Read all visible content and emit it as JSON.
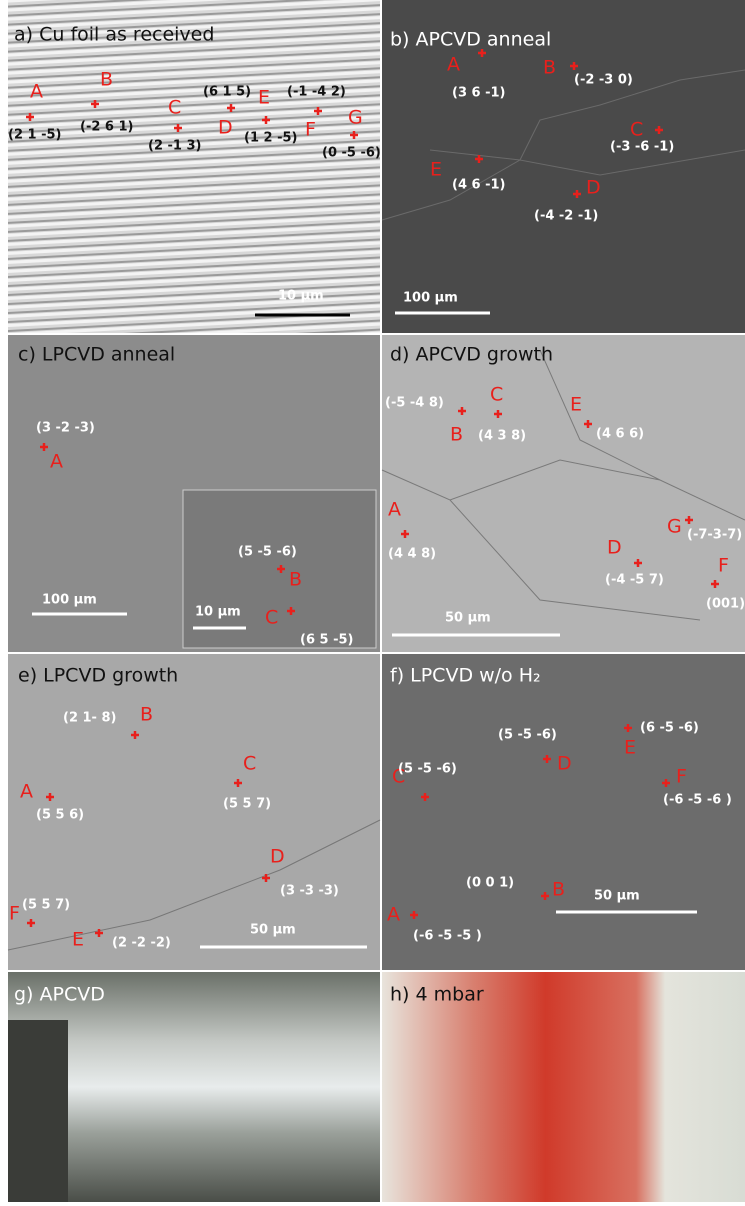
{
  "panels": [
    {
      "title": "a) Cu foil as received",
      "scale_bars": [
        "10 μm"
      ],
      "markers": [
        {
          "label": "A",
          "index": "(2 1 -5)"
        },
        {
          "label": "B",
          "index": "(-2 6 1)"
        },
        {
          "label": "C",
          "index": "(2 -1 3)"
        },
        {
          "label": "D",
          "index": "(6 1 5)"
        },
        {
          "label": "E",
          "index": "(1 2 -5)"
        },
        {
          "label": "F",
          "index": "(-1 -4 2)"
        },
        {
          "label": "G",
          "index": "(0 -5 -6)"
        }
      ]
    },
    {
      "title": "b) APCVD anneal",
      "scale_bars": [
        "100 μm"
      ],
      "markers": [
        {
          "label": "A",
          "index": "(3 6 -1)"
        },
        {
          "label": "B",
          "index": "(-2 -3 0)"
        },
        {
          "label": "C",
          "index": "(-3 -6 -1)"
        },
        {
          "label": "E",
          "index": "(4 6 -1)"
        },
        {
          "label": "D",
          "index": "(-4 -2 -1)"
        }
      ]
    },
    {
      "title": "c) LPCVD anneal",
      "scale_bars": [
        "100 μm",
        "10 μm"
      ],
      "markers": [
        {
          "label": "A",
          "index": "(3 -2 -3)"
        },
        {
          "label": "B",
          "index": "(5 -5 -6)"
        },
        {
          "label": "C",
          "index": "(6 5 -5)"
        }
      ]
    },
    {
      "title": "d) APCVD growth",
      "scale_bars": [
        "50 μm"
      ],
      "markers": [
        {
          "label": "B",
          "index": "(-5 -4 8)"
        },
        {
          "label": "C",
          "index": "(4 3 8)"
        },
        {
          "label": "E",
          "index": "(4 6 6)"
        },
        {
          "label": "A",
          "index": "(4 4 8)"
        },
        {
          "label": "G",
          "index": "(-7-3-7)"
        },
        {
          "label": "D",
          "index": "(-4 -5 7)"
        },
        {
          "label": "F",
          "index": "(001)"
        }
      ]
    },
    {
      "title": "e) LPCVD growth",
      "scale_bars": [
        "50 μm"
      ],
      "markers": [
        {
          "label": "B",
          "index": "(2 1- 8)"
        },
        {
          "label": "A",
          "index": "(5 5 6)"
        },
        {
          "label": "C",
          "index": "(5 5 7)"
        },
        {
          "label": "D",
          "index": "(3 -3 -3)"
        },
        {
          "label": "F",
          "index": "(5 5 7)"
        },
        {
          "label": "E",
          "index": "(2 -2 -2)"
        }
      ]
    },
    {
      "title": "f) LPCVD  w/o H₂",
      "scale_bars": [
        "50 μm"
      ],
      "markers": [
        {
          "label": "D",
          "index": "(5 -5 -6)"
        },
        {
          "label": "E",
          "index": "(6 -5 -6)"
        },
        {
          "label": "C",
          "index": "(5 -5 -6)"
        },
        {
          "label": "F",
          "index": "(-6 -5 -6 )"
        },
        {
          "label": "B",
          "index": "(0 0 1)"
        },
        {
          "label": "A",
          "index": "(-6 -5 -5 )"
        }
      ]
    },
    {
      "title": "g) APCVD",
      "scale_bars": [],
      "markers": []
    },
    {
      "title": "h) 4 mbar",
      "scale_bars": [],
      "markers": []
    }
  ]
}
